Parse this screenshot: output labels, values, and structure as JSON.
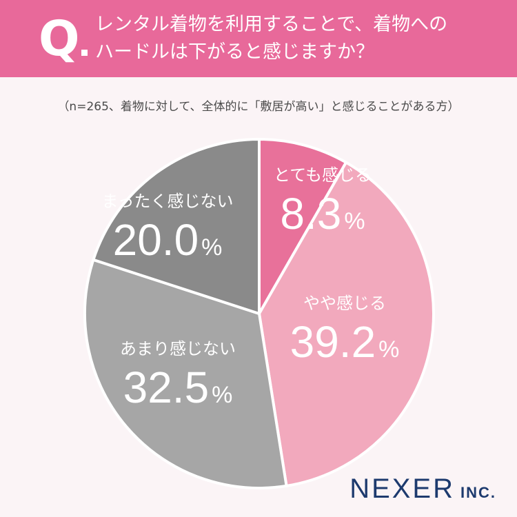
{
  "header": {
    "q_mark": "Q",
    "question_line1": "レンタル着物を利用することで、着物への",
    "question_line2": "ハードルは下がると感じますか？"
  },
  "subtitle": "（n=265、着物に対して、全体的に「敷居が高い」と感じることがある方）",
  "chart_data": {
    "type": "pie",
    "title": "レンタル着物を利用することで、着物へのハードルは下がると感じますか？",
    "subtitle": "（n=265、着物に対して、全体的に「敷居が高い」と感じることがある方）",
    "unit": "%",
    "start": "12 o'clock",
    "direction": "clockwise",
    "slices": [
      {
        "label": "とても感じる",
        "value": 8.3,
        "value_text": "8.3",
        "color": "#e8719a"
      },
      {
        "label": "やや感じる",
        "value": 39.2,
        "value_text": "39.2",
        "color": "#f2a9bd"
      },
      {
        "label": "あまり感じない",
        "value": 32.5,
        "value_text": "32.5",
        "color": "#a6a6a6"
      },
      {
        "label": "まったく感じない",
        "value": 20.0,
        "value_text": "20.0",
        "color": "#8a8a8a"
      }
    ]
  },
  "logo": {
    "main": "NEXER",
    "sub": "INC."
  }
}
